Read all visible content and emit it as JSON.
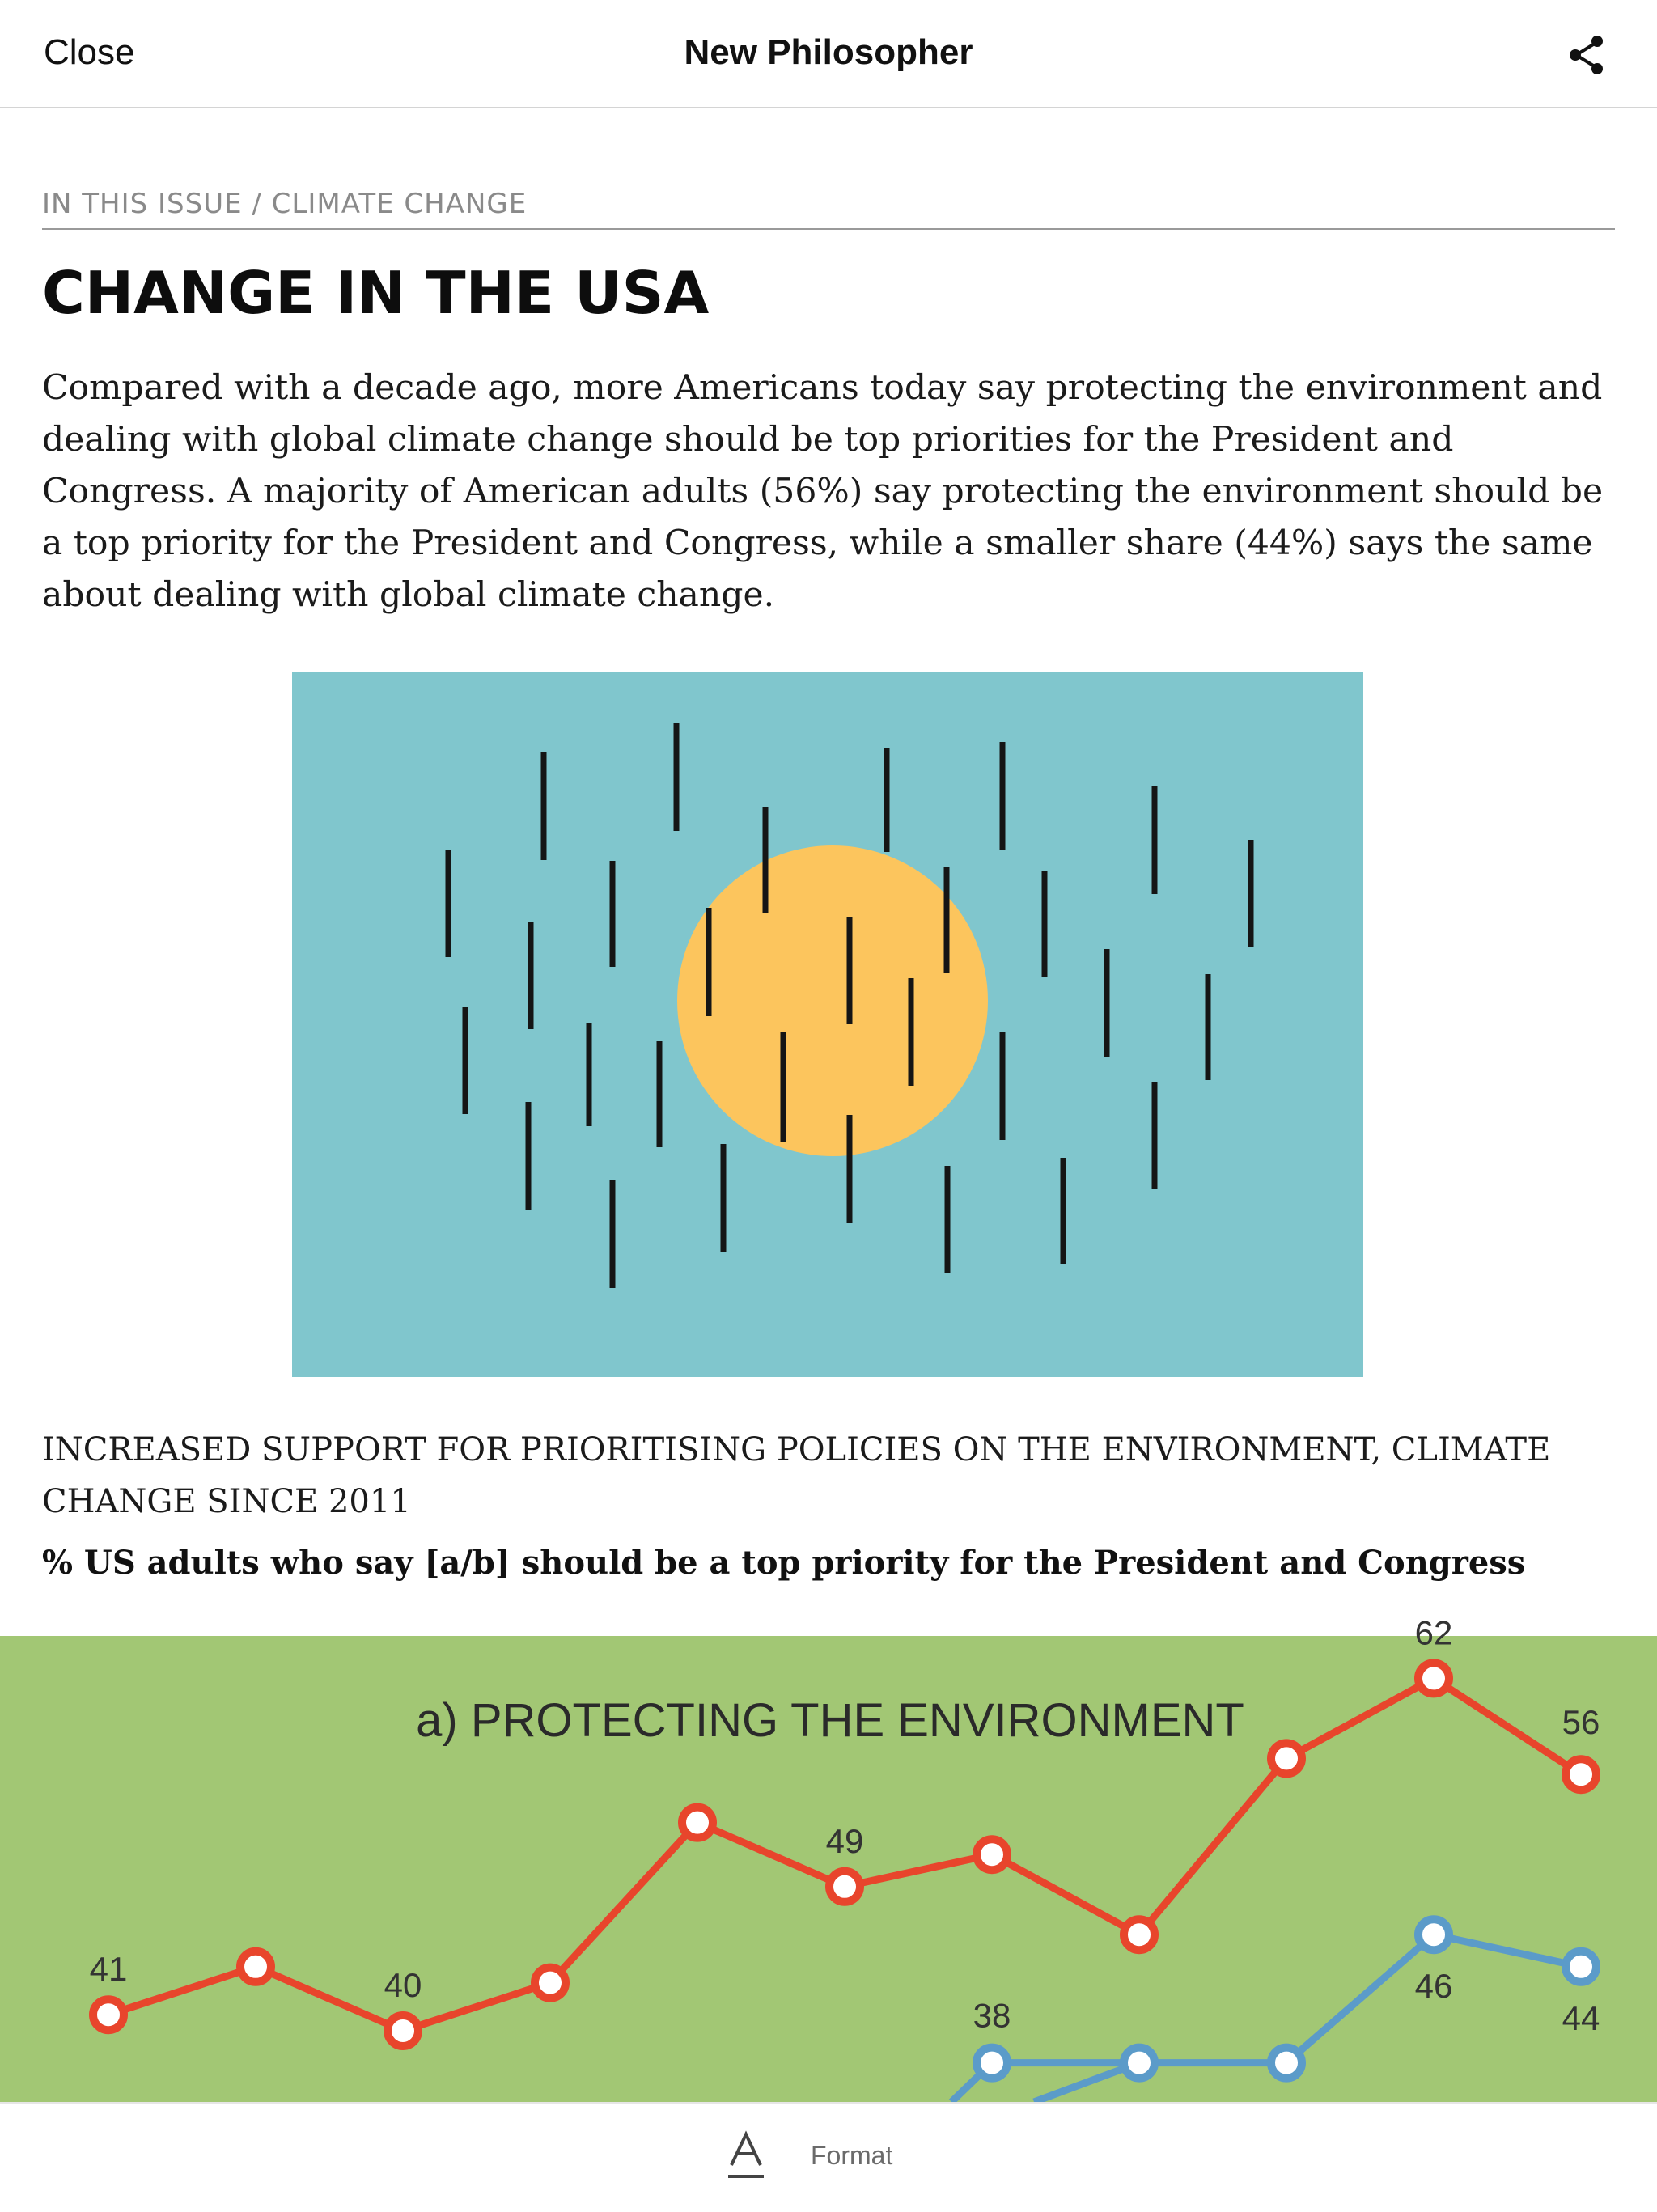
{
  "header": {
    "close_label": "Close",
    "title": "New Philosopher",
    "share_icon": "share-icon"
  },
  "article": {
    "breadcrumb": "IN THIS ISSUE / CLIMATE CHANGE",
    "headline": "CHANGE IN THE USA",
    "intro": "Compared with a decade ago, more Americans today say protecting the environment and dealing with global climate change should be top priorities for the President and Congress. A majority of American adults (56%) say protecting the environment should be a top priority for the President and Congress, while a smaller share (44%) says the same about dealing with global climate change.",
    "illustration": {
      "description_icon": "rain-and-sun-illustration",
      "background_color": "#80c6cd",
      "sun_color": "#fcc55d",
      "stroke_color": "#151515"
    },
    "chart_heading": "INCREASED SUPPORT FOR PRIORITISING POLICIES ON THE ENVIRONMENT, CLIMATE CHANGE SINCE 2011",
    "chart_subheading": "% US adults who say [a/b] should be a top priority for the President and Congress"
  },
  "chart_data": {
    "type": "line",
    "title": "a) PROTECTING THE ENVIRONMENT",
    "background_color": "#a2c774",
    "series": [
      {
        "color": "#e8452c",
        "points": [
          41,
          44,
          40,
          43,
          53,
          49,
          51,
          46,
          57,
          62,
          56
        ],
        "labels": {
          "0": "41",
          "2": "40",
          "5": "49",
          "9": "62",
          "10": "56"
        }
      },
      {
        "color": "#5b9bc9",
        "points_visible_from": 6,
        "points": [
          null,
          null,
          null,
          null,
          null,
          null,
          38,
          38,
          38,
          46,
          44
        ],
        "labels": {
          "6": "38",
          "9": "46",
          "10": "44"
        }
      }
    ]
  },
  "toolbar": {
    "format_label": "Format",
    "format_icon": "format-text-icon"
  }
}
